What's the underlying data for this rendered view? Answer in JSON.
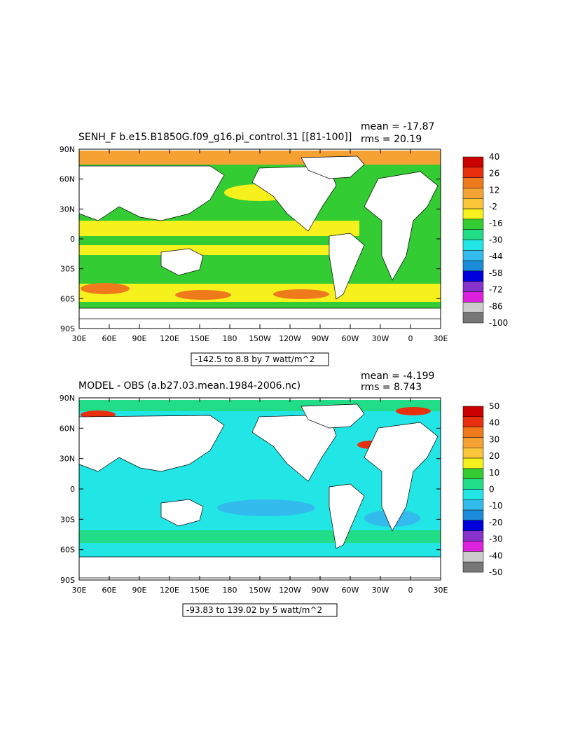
{
  "panels": [
    {
      "title_left": "SENH_F b.e15.B1850G.f09_g16.pi_control.31 [[81-100]]",
      "mean_text": "mean = -17.87",
      "rms_text": "rms = 20.19",
      "range_text": "-142.5 to 8.8 by 7 watt/m^2",
      "colorbar": {
        "labels": [
          "40",
          "26",
          "12",
          "-2",
          "-16",
          "-30",
          "-44",
          "-58",
          "-72",
          "-86",
          "-100"
        ],
        "colors": [
          "#cc0000",
          "#e8300f",
          "#ee7a1c",
          "#f5a233",
          "#fbc63a",
          "#f6f01c",
          "#33cc33",
          "#22dd88",
          "#22e6e6",
          "#33bbee",
          "#1a8cd9",
          "#0000dd",
          "#8833cc",
          "#dd22dd",
          "#cccccc",
          "#777777"
        ]
      }
    },
    {
      "title_left": "MODEL - OBS (a.b27.03.mean.1984-2006.nc)",
      "mean_text": "mean = -4.199",
      "rms_text": "rms = 8.743",
      "range_text": "-93.83 to 139.02 by 5 watt/m^2",
      "colorbar": {
        "labels": [
          "50",
          "40",
          "30",
          "20",
          "10",
          "0",
          "-10",
          "-20",
          "-30",
          "-40",
          "-50"
        ],
        "colors": [
          "#cc0000",
          "#e8300f",
          "#ee7a1c",
          "#f5a233",
          "#fbc63a",
          "#f6f01c",
          "#33cc33",
          "#22dd88",
          "#22e6e6",
          "#33bbee",
          "#1a8cd9",
          "#0000dd",
          "#8833cc",
          "#dd22dd",
          "#cccccc",
          "#777777"
        ]
      }
    }
  ],
  "axes": {
    "lat_labels": [
      "90N",
      "60N",
      "30N",
      "0",
      "30S",
      "60S",
      "90S"
    ],
    "lon_labels": [
      "30E",
      "60E",
      "90E",
      "120E",
      "150E",
      "180",
      "150W",
      "120W",
      "90W",
      "60W",
      "30W",
      "0",
      "30E"
    ]
  },
  "map_colors": {
    "top_ocean": "#33cc33",
    "top_band_warm": "#f6f01c",
    "top_arctic": "#f5a233",
    "top_high": "#ee7a1c",
    "bottom_ocean": "#22e6e6",
    "bottom_band": "#22dd88",
    "bottom_blue": "#33bbee",
    "bottom_red": "#e8300f",
    "land": "#ffffff"
  }
}
